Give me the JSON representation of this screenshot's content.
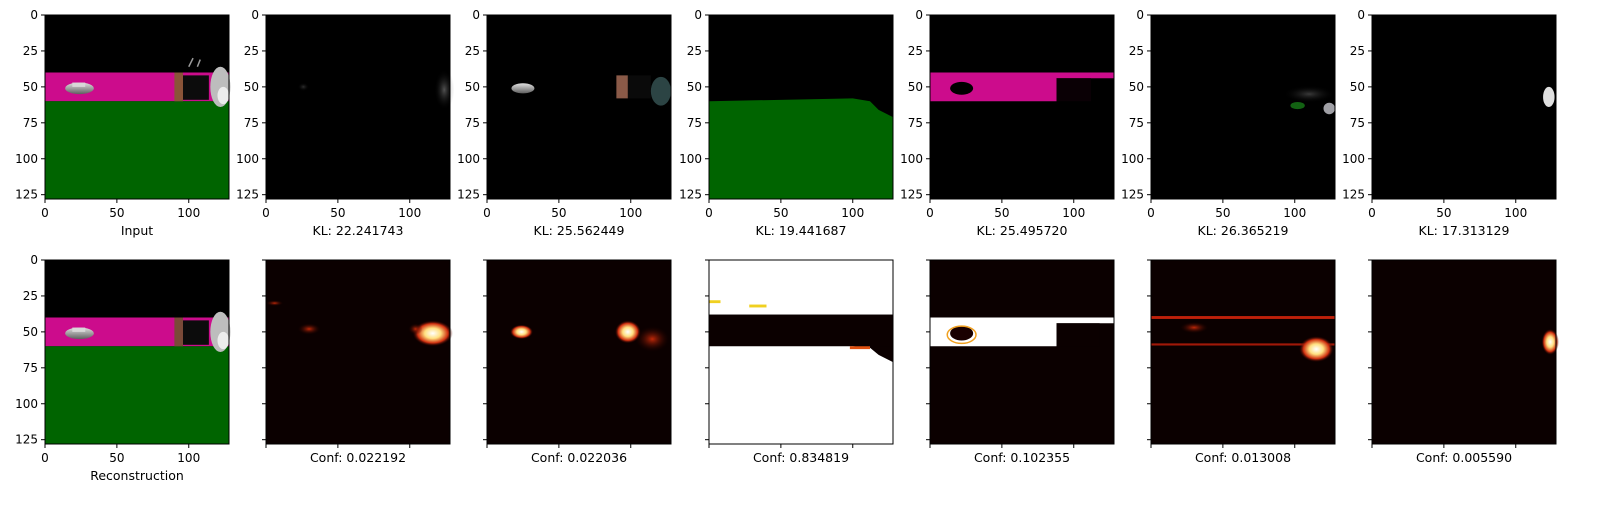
{
  "figure": {
    "rows": [
      {
        "panels": [
          {
            "kind": "input",
            "caption": "Input"
          },
          {
            "kind": "latent",
            "caption": "KL: 22.241743"
          },
          {
            "kind": "latent",
            "caption": "KL: 25.562449"
          },
          {
            "kind": "latent",
            "caption": "KL: 19.441687"
          },
          {
            "kind": "latent",
            "caption": "KL: 25.495720"
          },
          {
            "kind": "latent",
            "caption": "KL: 26.365219"
          },
          {
            "kind": "latent",
            "caption": "KL: 17.313129"
          }
        ]
      },
      {
        "panels": [
          {
            "kind": "reconstruction",
            "caption": "Reconstruction"
          },
          {
            "kind": "heatmap",
            "caption": "Conf: 0.022192"
          },
          {
            "kind": "heatmap",
            "caption": "Conf: 0.022036"
          },
          {
            "kind": "heatmap",
            "caption": "Conf: 0.834819"
          },
          {
            "kind": "heatmap",
            "caption": "Conf: 0.102355"
          },
          {
            "kind": "heatmap",
            "caption": "Conf: 0.013008"
          },
          {
            "kind": "heatmap",
            "caption": "Conf: 0.005590"
          }
        ]
      }
    ],
    "y_ticks": [
      "0",
      "25",
      "50",
      "75",
      "100",
      "125"
    ],
    "x_ticks": [
      "0",
      "50",
      "100"
    ],
    "colors": {
      "road_magenta": "#cc0c8c",
      "grass_green": "#006400",
      "heat_low": "#0b0000",
      "heat_mid": "#c0200a",
      "heat_high": "#ffffff"
    }
  }
}
